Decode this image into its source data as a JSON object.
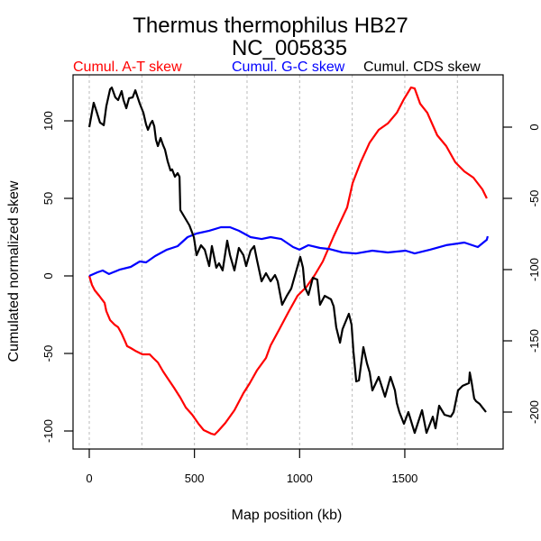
{
  "chart_data": {
    "type": "line",
    "title": "Thermus thermophilus HB27",
    "subtitle": "NC_005835",
    "xlabel": "Map position (kb)",
    "ylabel": "Cumulated normalized skew",
    "xlim": [
      0,
      1894
    ],
    "ylim_left": [
      -108,
      128
    ],
    "ylim_right": [
      -228,
      37
    ],
    "x_ticks": [
      0,
      500,
      1000,
      1500
    ],
    "x_tick_labels": [
      "0",
      "500",
      "1000",
      "1500"
    ],
    "x_grid": [
      0,
      250,
      500,
      750,
      1000,
      1250,
      1500,
      1750
    ],
    "y_left_ticks": [
      -100,
      -50,
      0,
      50,
      100
    ],
    "y_left_tick_labels": [
      "-100",
      "-50",
      "0",
      "50",
      "100"
    ],
    "y_right_ticks": [
      -200,
      -150,
      -100,
      -50,
      0
    ],
    "y_right_tick_labels": [
      "-200",
      "-150",
      "-100",
      "-50",
      "0"
    ],
    "grid": "vertical dotted",
    "legend_placement": "top",
    "series": [
      {
        "name": "Cumul. A-T skew",
        "color": "#ff0000",
        "axis": "left",
        "x": [
          0,
          13,
          26,
          47,
          73,
          81,
          99,
          120,
          137,
          154,
          171,
          180,
          197,
          219,
          253,
          287,
          304,
          326,
          351,
          377,
          403,
          433,
          459,
          489,
          519,
          544,
          579,
          596,
          613,
          647,
          690,
          733,
          763,
          797,
          840,
          862,
          904,
          947,
          990,
          1033,
          1072,
          1110,
          1162,
          1196,
          1226,
          1252,
          1290,
          1333,
          1376,
          1419,
          1462,
          1496,
          1530,
          1547,
          1573,
          1607,
          1654,
          1697,
          1740,
          1783,
          1826,
          1869,
          1890
        ],
        "y": [
          0,
          -5.8,
          -9.3,
          -12.8,
          -17.4,
          -22.7,
          -28.5,
          -31.4,
          -33.1,
          -37.2,
          -42.4,
          -45.3,
          -46.5,
          -48.3,
          -50.6,
          -50.6,
          -52.9,
          -55.8,
          -61.6,
          -66.9,
          -72.1,
          -78.5,
          -84.9,
          -89.5,
          -95.3,
          -99.4,
          -101.7,
          -102.3,
          -100.0,
          -94.8,
          -86.6,
          -75.6,
          -69.2,
          -61.0,
          -52.9,
          -44.8,
          -34.3,
          -23.3,
          -12.8,
          -7.0,
          0.6,
          9.3,
          25.6,
          35.5,
          44.2,
          59.9,
          73.3,
          86.0,
          94.2,
          98.3,
          105.2,
          114.0,
          121.5,
          120.9,
          111.0,
          105.2,
          90.7,
          83.7,
          73.3,
          67.4,
          63.4,
          55.8,
          50.0
        ]
      },
      {
        "name": "Cumul. G-C skew",
        "color": "#0000ff",
        "axis": "left",
        "x": [
          0,
          39,
          64,
          94,
          146,
          197,
          240,
          270,
          313,
          369,
          420,
          467,
          510,
          570,
          626,
          669,
          711,
          767,
          819,
          862,
          913,
          969,
          999,
          1042,
          1097,
          1140,
          1204,
          1269,
          1346,
          1419,
          1504,
          1547,
          1620,
          1697,
          1783,
          1847,
          1890,
          1894
        ],
        "y": [
          0,
          2.3,
          3.5,
          1.2,
          4.1,
          5.8,
          9.3,
          8.7,
          12.8,
          16.9,
          19.2,
          25.0,
          27.3,
          29.1,
          31.4,
          31.4,
          29.1,
          25.0,
          23.8,
          25.0,
          23.8,
          18.6,
          16.9,
          19.8,
          18.0,
          17.4,
          15.1,
          14.5,
          16.3,
          15.1,
          16.3,
          14.5,
          16.9,
          19.8,
          21.5,
          18.6,
          23.3,
          25.6
        ]
      },
      {
        "name": "Cumul. CDS skew",
        "color": "#000000",
        "axis": "right",
        "x": [
          0,
          21,
          34,
          51,
          69,
          81,
          99,
          107,
          124,
          137,
          154,
          163,
          176,
          189,
          206,
          219,
          227,
          240,
          257,
          270,
          279,
          291,
          300,
          309,
          317,
          326,
          339,
          351,
          360,
          373,
          386,
          394,
          407,
          420,
          429,
          433,
          476,
          497,
          510,
          531,
          549,
          570,
          583,
          604,
          617,
          634,
          656,
          669,
          690,
          711,
          733,
          746,
          767,
          784,
          797,
          819,
          840,
          862,
          883,
          896,
          917,
          939,
          960,
          982,
          1003,
          1016,
          1024,
          1042,
          1063,
          1084,
          1097,
          1119,
          1149,
          1162,
          1174,
          1192,
          1204,
          1234,
          1247,
          1256,
          1269,
          1282,
          1303,
          1320,
          1333,
          1346,
          1376,
          1406,
          1432,
          1453,
          1462,
          1474,
          1496,
          1517,
          1547,
          1582,
          1603,
          1633,
          1646,
          1663,
          1689,
          1719,
          1732,
          1753,
          1775,
          1805,
          1809,
          1817,
          1830,
          1839,
          1856,
          1869,
          1886
        ],
        "y": [
          0,
          17.1,
          11.4,
          3.2,
          1.3,
          14.6,
          26.6,
          27.8,
          20.9,
          19.0,
          25.3,
          19.0,
          13.3,
          20.3,
          20.9,
          25.9,
          22.2,
          16.5,
          10.1,
          1.9,
          -1.9,
          2.5,
          4.4,
          0.6,
          -8.9,
          -13.3,
          -7.6,
          -12.7,
          -15.8,
          -24.1,
          -30.4,
          -29.7,
          -34.8,
          -32.3,
          -34.8,
          -58.2,
          -69.0,
          -77.2,
          -89.9,
          -82.9,
          -86.1,
          -97.5,
          -83.5,
          -98.7,
          -95.6,
          -100.6,
          -79.7,
          -89.9,
          -100.6,
          -84.8,
          -89.9,
          -97.5,
          -86.7,
          -83.5,
          -93.0,
          -108.2,
          -102.5,
          -108.2,
          -103.8,
          -108.2,
          -124.7,
          -118.4,
          -113.3,
          -101.9,
          -91.1,
          -98.7,
          -112.0,
          -117.7,
          -105.7,
          -107.0,
          -124.7,
          -118.4,
          -120.9,
          -125.9,
          -140.5,
          -151.3,
          -141.8,
          -131.0,
          -138.6,
          -157.6,
          -178.5,
          -177.8,
          -154.4,
          -165.8,
          -172.2,
          -184.8,
          -175.3,
          -189.2,
          -175.3,
          -184.8,
          -193.7,
          -200.0,
          -208.2,
          -200.0,
          -214.6,
          -198.7,
          -214.6,
          -203.2,
          -211.4,
          -195.6,
          -201.9,
          -203.2,
          -200.0,
          -184.8,
          -181.6,
          -179.7,
          -172.2,
          -178.5,
          -190.5,
          -192.4,
          -194.3,
          -196.8,
          -200.0
        ]
      }
    ]
  }
}
